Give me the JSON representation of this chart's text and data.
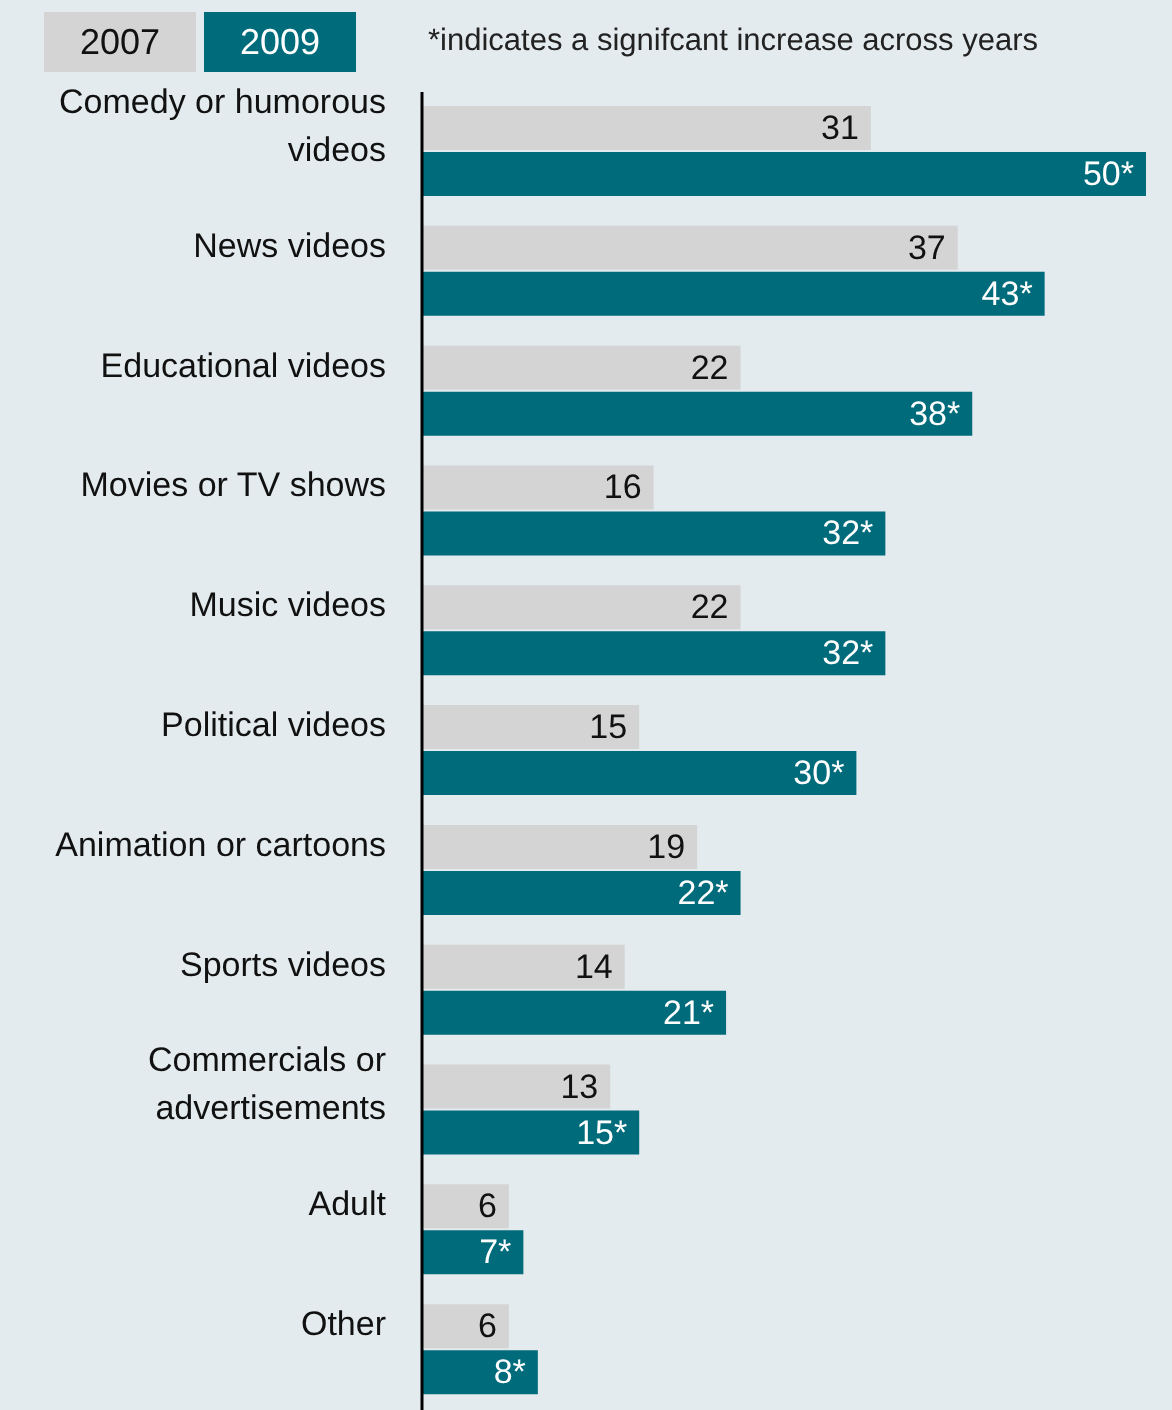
{
  "chart_data": {
    "type": "bar",
    "orientation": "horizontal",
    "legend": "top left",
    "annotations": [
      "*indicates a signifcant increase across years"
    ],
    "categories": [
      "Comedy or humorous videos",
      "News videos",
      "Educational videos",
      "Movies or TV shows",
      "Music videos",
      "Political videos",
      "Animation or cartoons",
      "Sports videos",
      "Commercials or advertisements",
      "Adult",
      "Other"
    ],
    "series": [
      {
        "name": "2007",
        "color": "#d4d4d4",
        "values": [
          31,
          37,
          22,
          16,
          22,
          15,
          19,
          14,
          13,
          6,
          6
        ],
        "value_labels": [
          "31",
          "37",
          "22",
          "16",
          "22",
          "15",
          "19",
          "14",
          "13",
          "6",
          "6"
        ]
      },
      {
        "name": "2009",
        "color": "#006b7a",
        "values": [
          50,
          43,
          38,
          32,
          32,
          30,
          22,
          21,
          15,
          7,
          8
        ],
        "value_labels": [
          "50*",
          "43*",
          "38*",
          "32*",
          "32*",
          "30*",
          "22*",
          "21*",
          "15*",
          "7*",
          "8*"
        ]
      }
    ]
  }
}
